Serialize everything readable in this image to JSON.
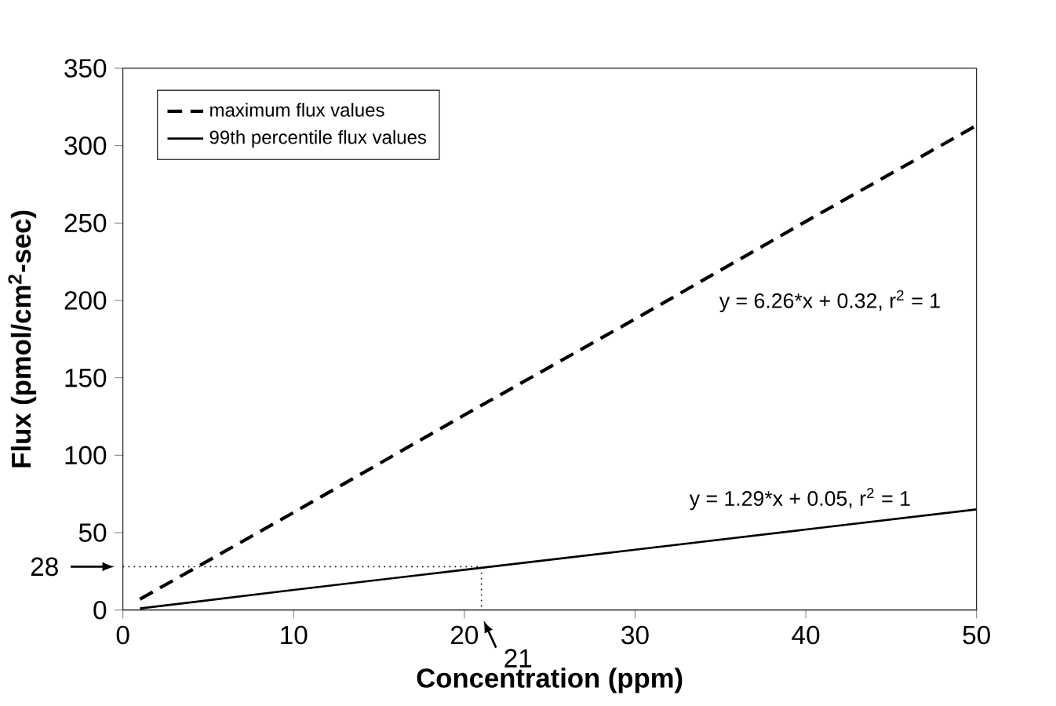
{
  "chart_data": {
    "type": "line",
    "xlabel": "Concentration (ppm)",
    "ylabel": "Flux (pmol/cm$^{2}$-sec)",
    "xlim": [
      0,
      50
    ],
    "ylim": [
      0,
      350
    ],
    "xticks": [
      0,
      10,
      20,
      30,
      40,
      50
    ],
    "yticks": [
      0,
      50,
      100,
      150,
      200,
      250,
      300,
      350
    ],
    "legend": "top left",
    "grid": false,
    "marker": "none",
    "series": [
      {
        "name": "maximum flux values",
        "color": "#000000",
        "line_style": "dashed",
        "x": [
          1,
          10,
          20,
          30,
          40,
          50
        ],
        "values": [
          7,
          63,
          126,
          188,
          251,
          313
        ]
      },
      {
        "name": "99th percentile flux values",
        "color": "#000000",
        "line_style": "solid",
        "x": [
          1,
          10,
          20,
          30,
          40,
          50
        ],
        "values": [
          1,
          13,
          26,
          39,
          52,
          65
        ]
      },
      {
        "color": "#000000",
        "line_style": "dotted",
        "x": [
          0,
          21,
          21
        ],
        "values": [
          28,
          28,
          0
        ]
      }
    ],
    "annotations": [
      "y = 6.26*x + 0.32, r$^{2}$ = 1",
      "y = 1.29*x + 0.05, r$^{2}$ = 1",
      {
        "text": "28",
        "x": 0,
        "y": 28
      },
      {
        "text": "21",
        "x": 21,
        "y": 0
      }
    ]
  }
}
